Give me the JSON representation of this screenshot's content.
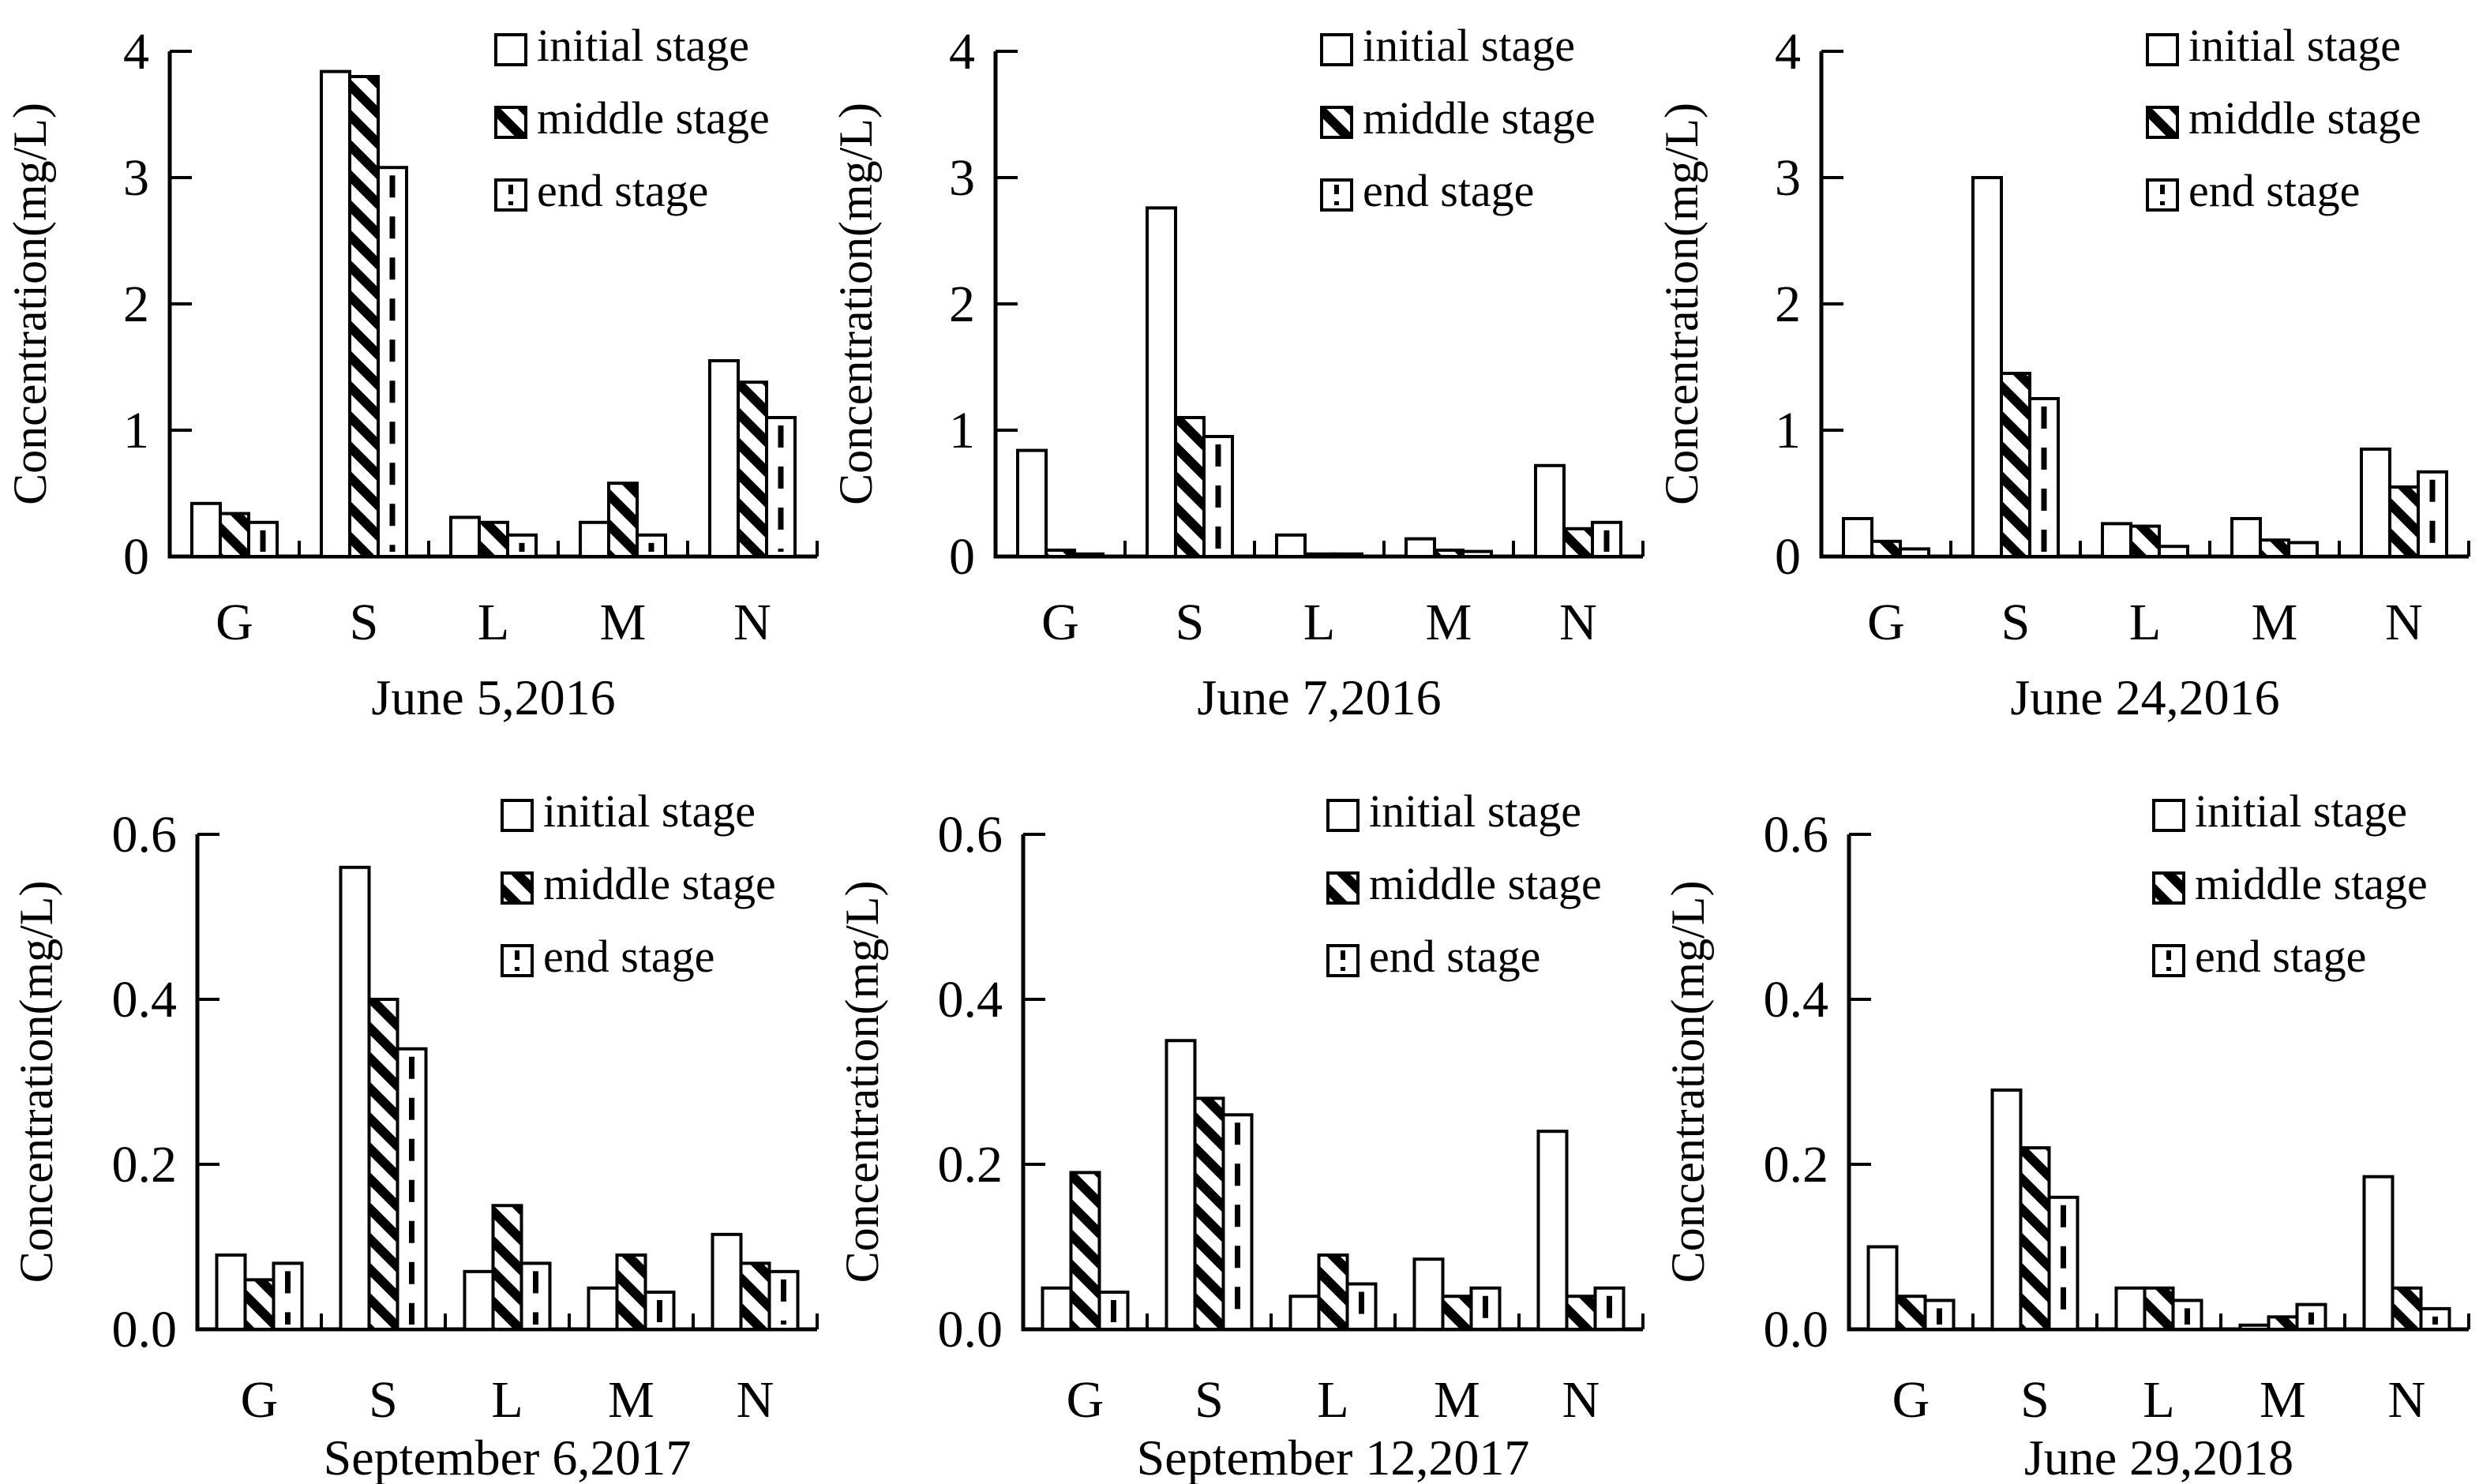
{
  "figure_caption_color": "#000000",
  "accent_color": "#000000",
  "background_color": "#ffffff",
  "chart_data": [
    {
      "type": "bar",
      "title": "June 5,2016",
      "ylabel": "Concentration(mg/L)",
      "categories": [
        "G",
        "S",
        "L",
        "M",
        "N"
      ],
      "ylim": [
        0,
        4
      ],
      "yticks": [
        0,
        1,
        2,
        3,
        4
      ],
      "yticklabels": [
        "0",
        "1",
        "2",
        "3",
        "4"
      ],
      "grid": "off",
      "legend_position": "top-right-inside",
      "series": [
        {
          "name": "initial stage",
          "pattern": "open",
          "values": [
            0.42,
            3.84,
            0.31,
            0.27,
            1.55
          ]
        },
        {
          "name": "middle stage",
          "pattern": "diagonal-hatch",
          "values": [
            0.34,
            3.8,
            0.27,
            0.58,
            1.38
          ]
        },
        {
          "name": "end stage",
          "pattern": "vertical-dash",
          "values": [
            0.27,
            3.08,
            0.17,
            0.17,
            1.1
          ]
        }
      ]
    },
    {
      "type": "bar",
      "title": "June 7,2016",
      "ylabel": "Concentration(mg/L)",
      "categories": [
        "G",
        "S",
        "L",
        "M",
        "N"
      ],
      "ylim": [
        0,
        4
      ],
      "yticks": [
        0,
        1,
        2,
        3,
        4
      ],
      "yticklabels": [
        "0",
        "1",
        "2",
        "3",
        "4"
      ],
      "grid": "off",
      "legend_position": "top-right-inside",
      "series": [
        {
          "name": "initial stage",
          "pattern": "open",
          "values": [
            0.84,
            2.76,
            0.17,
            0.14,
            0.72
          ]
        },
        {
          "name": "middle stage",
          "pattern": "diagonal-hatch",
          "values": [
            0.05,
            1.1,
            0.02,
            0.05,
            0.22
          ]
        },
        {
          "name": "end stage",
          "pattern": "vertical-dash",
          "values": [
            0.02,
            0.95,
            0.02,
            0.04,
            0.27
          ]
        }
      ]
    },
    {
      "type": "bar",
      "title": "June 24,2016",
      "ylabel": "Concentration(mg/L)",
      "categories": [
        "G",
        "S",
        "L",
        "M",
        "N"
      ],
      "ylim": [
        0,
        4
      ],
      "yticks": [
        0,
        1,
        2,
        3,
        4
      ],
      "yticklabels": [
        "0",
        "1",
        "2",
        "3",
        "4"
      ],
      "grid": "off",
      "legend_position": "top-right-inside",
      "series": [
        {
          "name": "initial stage",
          "pattern": "open",
          "values": [
            0.3,
            3.0,
            0.26,
            0.3,
            0.85
          ]
        },
        {
          "name": "middle stage",
          "pattern": "diagonal-hatch",
          "values": [
            0.12,
            1.45,
            0.24,
            0.13,
            0.55
          ]
        },
        {
          "name": "end stage",
          "pattern": "vertical-dash",
          "values": [
            0.06,
            1.25,
            0.08,
            0.11,
            0.67
          ]
        }
      ]
    },
    {
      "type": "bar",
      "title": "September 6,2017",
      "ylabel": "Concentration(mg/L)",
      "categories": [
        "G",
        "S",
        "L",
        "M",
        "N"
      ],
      "ylim": [
        0,
        0.6
      ],
      "yticks": [
        0,
        0.2,
        0.4,
        0.6
      ],
      "yticklabels": [
        "0.0",
        "0.2",
        "0.4",
        "0.6"
      ],
      "grid": "off",
      "legend_position": "top-right-inside",
      "series": [
        {
          "name": "initial stage",
          "pattern": "open",
          "values": [
            0.09,
            0.56,
            0.07,
            0.05,
            0.115
          ]
        },
        {
          "name": "middle stage",
          "pattern": "diagonal-hatch",
          "values": [
            0.06,
            0.4,
            0.15,
            0.09,
            0.08
          ]
        },
        {
          "name": "end stage",
          "pattern": "vertical-dash",
          "values": [
            0.08,
            0.34,
            0.08,
            0.045,
            0.07
          ]
        }
      ]
    },
    {
      "type": "bar",
      "title": "September 12,2017",
      "ylabel": "Concentration(mg/L)",
      "categories": [
        "G",
        "S",
        "L",
        "M",
        "N"
      ],
      "ylim": [
        0,
        0.6
      ],
      "yticks": [
        0,
        0.2,
        0.4,
        0.6
      ],
      "yticklabels": [
        "0.0",
        "0.2",
        "0.4",
        "0.6"
      ],
      "grid": "off",
      "legend_position": "top-right-inside",
      "series": [
        {
          "name": "initial stage",
          "pattern": "open",
          "values": [
            0.05,
            0.35,
            0.04,
            0.085,
            0.24
          ]
        },
        {
          "name": "middle stage",
          "pattern": "diagonal-hatch",
          "values": [
            0.19,
            0.28,
            0.09,
            0.04,
            0.04
          ]
        },
        {
          "name": "end stage",
          "pattern": "vertical-dash",
          "values": [
            0.045,
            0.26,
            0.055,
            0.05,
            0.05
          ]
        }
      ]
    },
    {
      "type": "bar",
      "title": "June 29,2018",
      "ylabel": "Concentration(mg/L)",
      "categories": [
        "G",
        "S",
        "L",
        "M",
        "N"
      ],
      "ylim": [
        0,
        0.6
      ],
      "yticks": [
        0,
        0.2,
        0.4,
        0.6
      ],
      "yticklabels": [
        "0.0",
        "0.2",
        "0.4",
        "0.6"
      ],
      "grid": "off",
      "legend_position": "top-right-inside",
      "series": [
        {
          "name": "initial stage",
          "pattern": "open",
          "values": [
            0.1,
            0.29,
            0.05,
            0.005,
            0.185
          ]
        },
        {
          "name": "middle stage",
          "pattern": "diagonal-hatch",
          "values": [
            0.04,
            0.22,
            0.05,
            0.015,
            0.05
          ]
        },
        {
          "name": "end stage",
          "pattern": "vertical-dash",
          "values": [
            0.035,
            0.16,
            0.035,
            0.03,
            0.025
          ]
        }
      ]
    }
  ]
}
